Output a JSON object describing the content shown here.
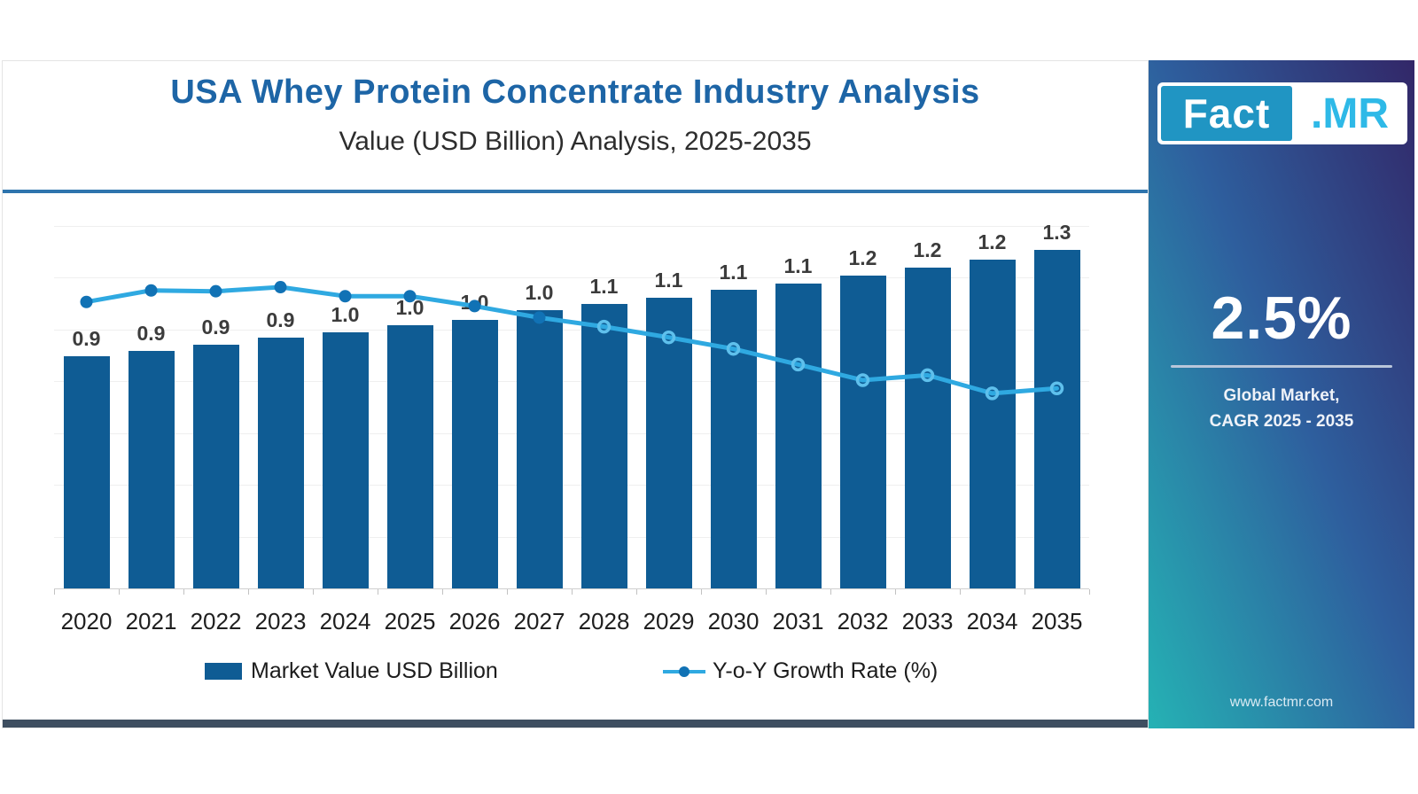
{
  "header": {
    "title": "USA Whey Protein Concentrate Industry Analysis",
    "subtitle": "Value (USD Billion) Analysis, 2025-2035"
  },
  "chart_data": {
    "type": "bar",
    "title": "USA Whey Protein Concentrate Industry Analysis",
    "subtitle": "Value (USD Billion) Analysis, 2025-2035",
    "categories": [
      "2020",
      "2021",
      "2022",
      "2023",
      "2024",
      "2025",
      "2026",
      "2027",
      "2028",
      "2029",
      "2030",
      "2031",
      "2032",
      "2033",
      "2034",
      "2035"
    ],
    "series": [
      {
        "name": "Market Value USD Billion",
        "type": "bar",
        "values": [
          0.9,
          0.9,
          0.9,
          0.9,
          1.0,
          1.0,
          1.0,
          1.0,
          1.1,
          1.1,
          1.1,
          1.1,
          1.2,
          1.2,
          1.2,
          1.3
        ],
        "labels": [
          "0.9",
          "0.9",
          "0.9",
          "0.9",
          "1.0",
          "1.0",
          "1.0",
          "1.0",
          "1.1",
          "1.1",
          "1.1",
          "1.1",
          "1.2",
          "1.2",
          "1.2",
          "1.3"
        ],
        "values_precise_estimated": [
          0.895,
          0.916,
          0.94,
          0.967,
          0.988,
          1.015,
          1.036,
          1.073,
          1.098,
          1.121,
          1.152,
          1.176,
          1.207,
          1.238,
          1.269,
          1.307
        ],
        "color": "#0f5c94"
      },
      {
        "name": "Y-o-Y Growth Rate (%)",
        "type": "line",
        "values_estimated": [
          3.48,
          3.62,
          3.61,
          3.66,
          3.55,
          3.55,
          3.43,
          3.29,
          3.18,
          3.05,
          2.91,
          2.72,
          2.53,
          2.59,
          2.37,
          2.43
        ],
        "color": "#2fa9e1",
        "marker_filled_color": "#1172b5",
        "filled_marker_count": 8
      }
    ],
    "ylim": [
      0,
      1.43
    ],
    "ylim_secondary": [
      0,
      4.5
    ],
    "grid": true,
    "grid_step_value": 0.2,
    "legend_position": "bottom",
    "xlabel": "",
    "ylabel": ""
  },
  "legend": {
    "items": [
      {
        "label": "Market Value USD Billion",
        "swatch": "bar"
      },
      {
        "label": "Y-o-Y Growth Rate (%)",
        "swatch": "line"
      }
    ]
  },
  "sidebar": {
    "logo": {
      "part1": "Fact",
      "part2": ".MR"
    },
    "cagr_value": "2.5%",
    "cagr_caption_line1": "Global Market,",
    "cagr_caption_line2": "CAGR 2025 - 2035",
    "website": "www.factmr.com"
  },
  "colors": {
    "title_blue": "#1d65a6",
    "bar_blue": "#0f5c94",
    "line_blue": "#2fa9e1",
    "marker_dark_blue": "#1172b5",
    "title_divider_blue": "#2e74ad",
    "bottom_bar_slate": "#3e4e60",
    "panel_gradient_top": "#322768",
    "panel_gradient_mid": "#2e5f9e",
    "panel_gradient_bottom": "#25b2b4",
    "logo_box_teal": "#2095c3",
    "logo_mr_cyan": "#2eb9e7"
  }
}
